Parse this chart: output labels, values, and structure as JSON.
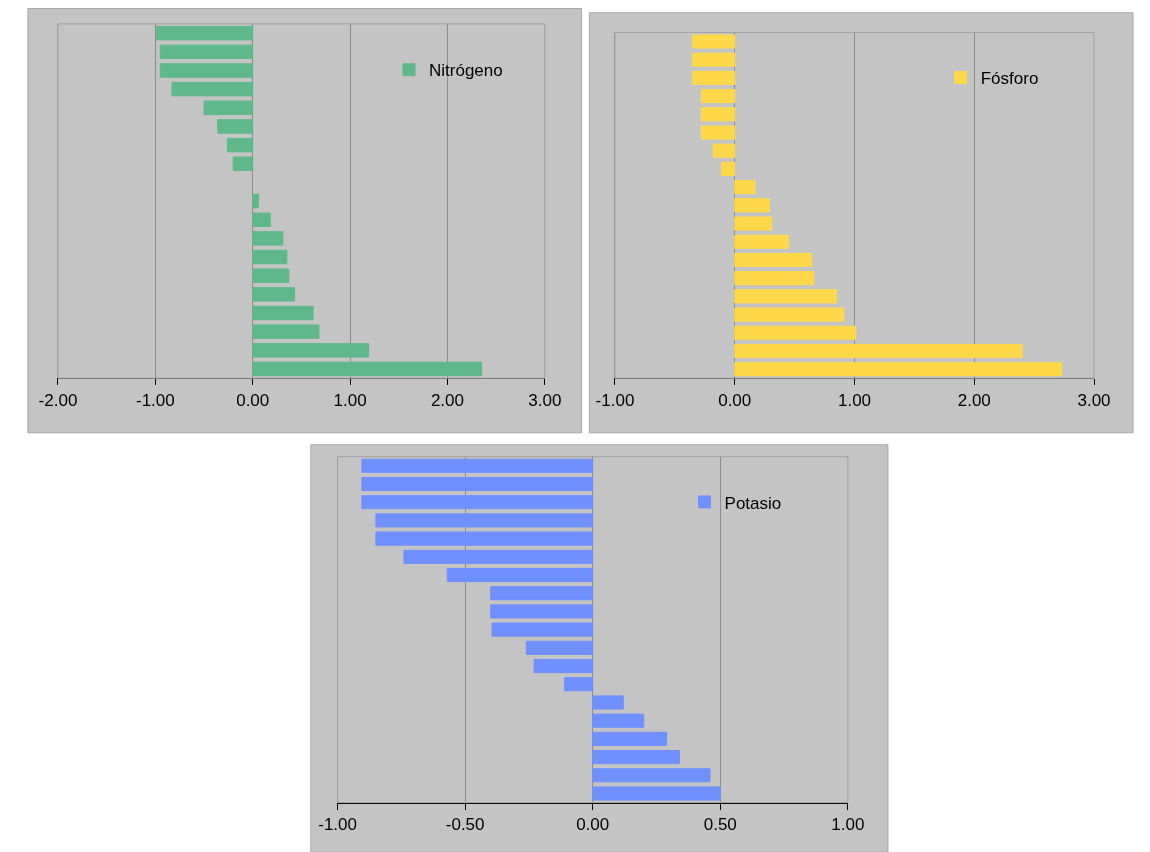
{
  "chart_data": [
    {
      "type": "bar",
      "orientation": "horizontal",
      "categories": [
        null,
        null,
        null,
        null,
        null,
        null,
        null,
        null,
        null,
        null,
        null,
        null,
        null,
        null,
        null,
        null,
        null,
        null,
        null
      ],
      "series": [
        {
          "name": "Nitrógeno",
          "color": "#5fb88a",
          "values": [
            -0.99,
            -0.95,
            -0.95,
            -0.83,
            -0.5,
            -0.36,
            -0.26,
            -0.2,
            null,
            0.06,
            0.18,
            0.31,
            0.35,
            0.37,
            0.43,
            0.62,
            0.68,
            1.19,
            2.35
          ]
        }
      ],
      "xlim": [
        -2,
        3
      ],
      "xticks": [
        {
          "value": -2,
          "label": "-2.00"
        },
        {
          "value": -1,
          "label": "-1.00"
        },
        {
          "value": 0,
          "label": "0.00"
        },
        {
          "value": 1,
          "label": "1.00"
        },
        {
          "value": 2,
          "label": "2.00"
        },
        {
          "value": 3,
          "label": "3.00"
        }
      ],
      "grid": "x",
      "legend": "top right",
      "tick_labels": "x"
    },
    {
      "type": "bar",
      "orientation": "horizontal",
      "categories": [
        null,
        null,
        null,
        null,
        null,
        null,
        null,
        null,
        null,
        null,
        null,
        null,
        null,
        null,
        null,
        null,
        null,
        null,
        null
      ],
      "series": [
        {
          "name": "Fósforo",
          "color": "#ffd84a",
          "values": [
            -0.35,
            -0.35,
            -0.35,
            -0.28,
            -0.28,
            -0.28,
            -0.18,
            -0.11,
            0.17,
            0.29,
            0.31,
            0.45,
            0.64,
            0.66,
            0.85,
            0.91,
            1.01,
            2.4,
            2.73
          ]
        }
      ],
      "xlim": [
        -1,
        3
      ],
      "xticks": [
        {
          "value": -1,
          "label": "-1.00"
        },
        {
          "value": 0,
          "label": "0.00"
        },
        {
          "value": 1,
          "label": "1.00"
        },
        {
          "value": 2,
          "label": "2.00"
        },
        {
          "value": 3,
          "label": "3.00"
        }
      ],
      "grid": "x",
      "legend": "top right",
      "tick_labels": "x"
    },
    {
      "type": "bar",
      "orientation": "horizontal",
      "categories": [
        null,
        null,
        null,
        null,
        null,
        null,
        null,
        null,
        null,
        null,
        null,
        null,
        null,
        null,
        null,
        null,
        null,
        null,
        null
      ],
      "series": [
        {
          "name": "Potasio",
          "color": "#7090ff",
          "values": [
            -0.905,
            -0.905,
            -0.905,
            -0.85,
            -0.85,
            -0.74,
            -0.57,
            -0.4,
            -0.4,
            -0.395,
            -0.26,
            -0.23,
            -0.11,
            0.12,
            0.2,
            0.29,
            0.34,
            0.46,
            0.5
          ]
        }
      ],
      "xlim": [
        -1,
        1
      ],
      "xticks": [
        {
          "value": -1,
          "label": "-1.00"
        },
        {
          "value": -0.5,
          "label": "-0.50"
        },
        {
          "value": 0,
          "label": "0.00"
        },
        {
          "value": 0.5,
          "label": "0.50"
        },
        {
          "value": 1,
          "label": "1.00"
        }
      ],
      "grid": "x",
      "legend": "top right",
      "tick_labels": "x"
    }
  ]
}
